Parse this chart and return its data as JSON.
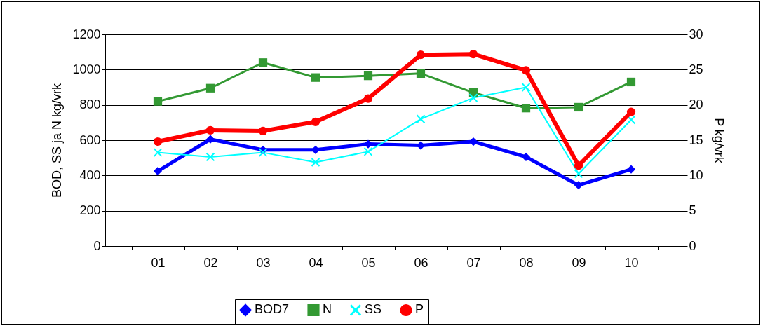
{
  "chart_data": {
    "type": "line",
    "ylabel": "BOD, SS ja N kg/vrk",
    "y2label": "P kg/vrk",
    "categories": [
      "01",
      "02",
      "03",
      "04",
      "05",
      "06",
      "07",
      "08",
      "09",
      "10"
    ],
    "series": [
      {
        "name": "BOD7",
        "color": "#0000ff",
        "marker": "diamond",
        "values": [
          425,
          605,
          545,
          545,
          578,
          570,
          592,
          505,
          345,
          435
        ]
      },
      {
        "name": "N",
        "color": "#339933",
        "marker": "square",
        "values": [
          820,
          895,
          1040,
          955,
          965,
          978,
          870,
          782,
          787,
          930
        ]
      },
      {
        "name": "SS",
        "color": "#00ffff",
        "marker": "cross",
        "values": [
          530,
          505,
          530,
          475,
          535,
          720,
          840,
          900,
          410,
          715
        ]
      },
      {
        "name": "P",
        "color": "#ff0000",
        "marker": "circle",
        "axis": "y2",
        "values": [
          14.8,
          16.4,
          16.3,
          17.6,
          20.9,
          27.1,
          27.2,
          24.9,
          11.4,
          19.0
        ]
      }
    ],
    "ylim": [
      0,
      1200
    ],
    "yticks": [
      0,
      200,
      400,
      600,
      800,
      1000,
      1200
    ],
    "y2lim": [
      0,
      30
    ],
    "y2ticks": [
      0,
      5,
      10,
      15,
      20,
      25,
      30
    ],
    "grid": "y",
    "legend": "bottom"
  }
}
